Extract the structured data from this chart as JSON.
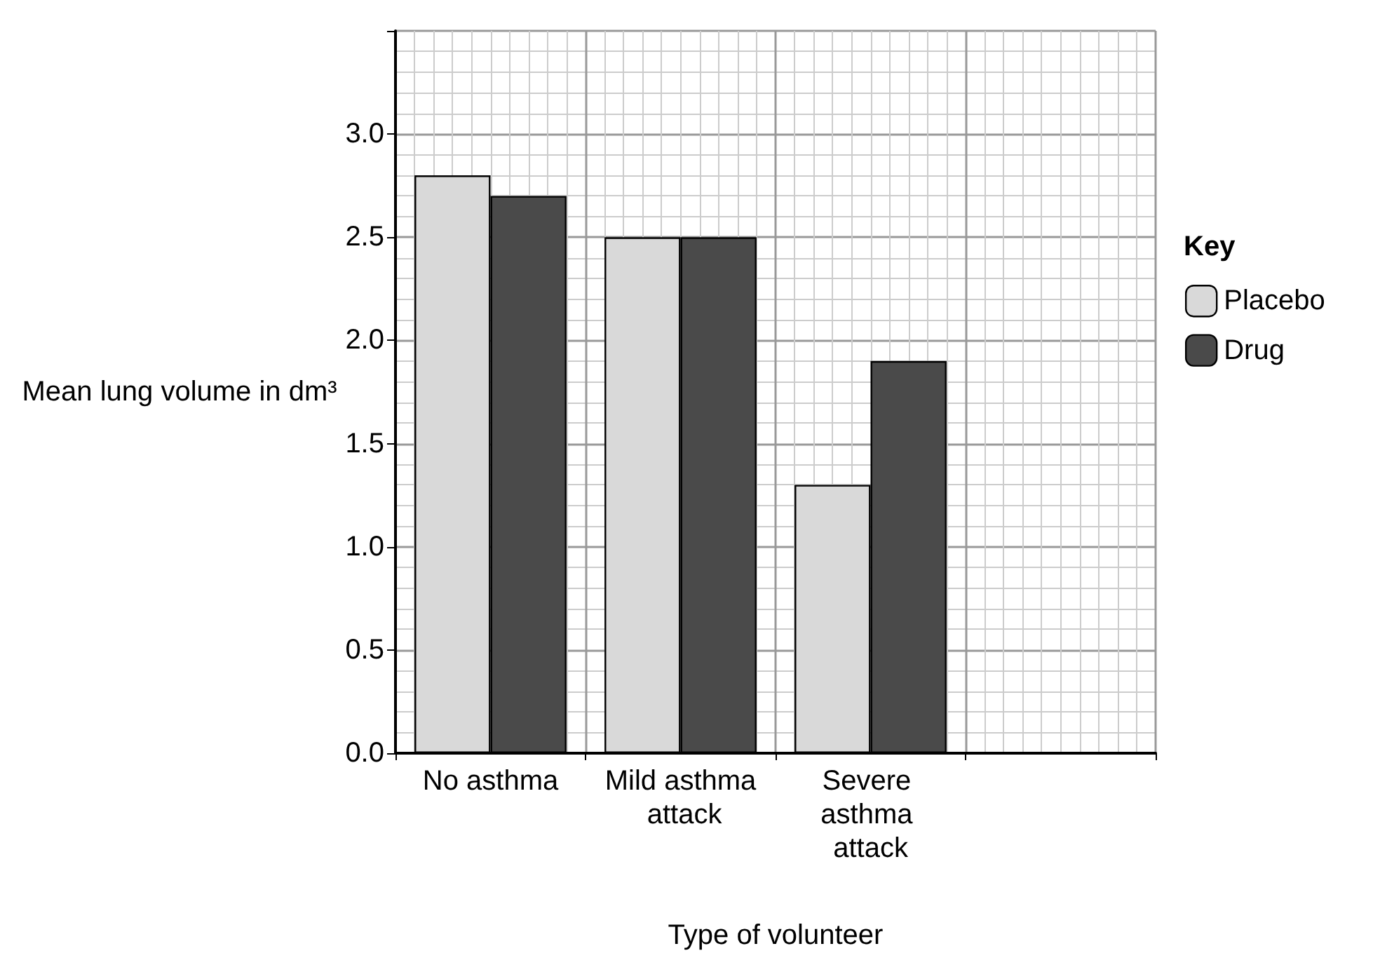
{
  "chart_data": {
    "type": "bar",
    "xlabel": "Type of volunteer",
    "ylabel": "Mean lung volume in dm³",
    "legend_title": "Key",
    "categories": [
      "No asthma",
      "Mild asthma attack",
      "Severe asthma attack",
      null
    ],
    "series": [
      {
        "name": "Placebo",
        "color": "#d9d9d9",
        "values": [
          2.8,
          2.5,
          1.3,
          null
        ]
      },
      {
        "name": "Drug",
        "color": "#4a4a4a",
        "values": [
          2.7,
          2.5,
          1.9,
          null
        ]
      }
    ],
    "ylim": [
      0,
      3.5
    ],
    "yticks": [
      {
        "value": 0,
        "label": "0.0"
      },
      {
        "value": 0.5,
        "label": "0.5"
      },
      {
        "value": 1,
        "label": "1.0"
      },
      {
        "value": 1.5,
        "label": "1.5"
      },
      {
        "value": 2,
        "label": "2.0"
      },
      {
        "value": 2.5,
        "label": "2.5"
      },
      {
        "value": 3,
        "label": "3.0"
      }
    ],
    "grid": true,
    "legend": "right"
  }
}
